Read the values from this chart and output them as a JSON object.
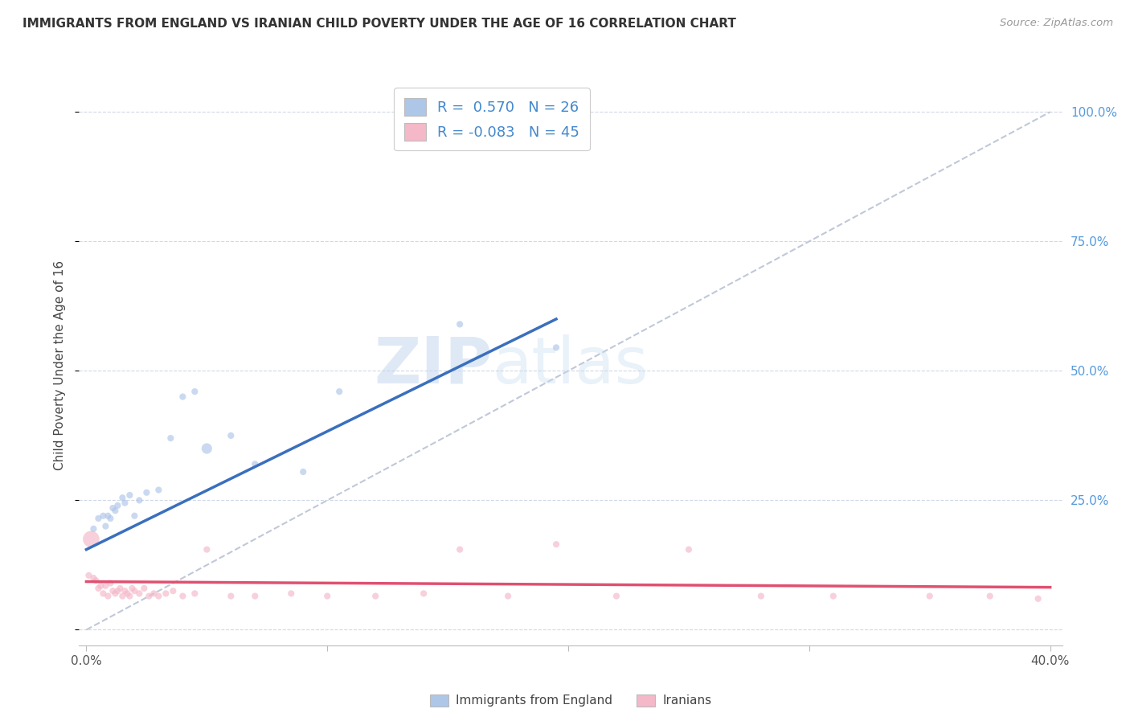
{
  "title": "IMMIGRANTS FROM ENGLAND VS IRANIAN CHILD POVERTY UNDER THE AGE OF 16 CORRELATION CHART",
  "source": "Source: ZipAtlas.com",
  "ylabel": "Child Poverty Under the Age of 16",
  "legend_label1": "Immigrants from England",
  "legend_label2": "Iranians",
  "r1": 0.57,
  "n1": 26,
  "r2": -0.083,
  "n2": 45,
  "xlim": [
    -0.003,
    0.405
  ],
  "ylim": [
    -0.03,
    1.05
  ],
  "ytick_positions": [
    0.0,
    0.25,
    0.5,
    0.75,
    1.0
  ],
  "ytick_labels": [
    "",
    "25.0%",
    "50.0%",
    "75.0%",
    "100.0%"
  ],
  "xtick_positions": [
    0.0,
    0.1,
    0.2,
    0.3,
    0.4
  ],
  "xtick_labels": [
    "0.0%",
    "",
    "",
    "",
    "40.0%"
  ],
  "color_blue": "#aec6e8",
  "color_pink": "#f4b8c8",
  "line_blue": "#3a6fbd",
  "line_pink": "#e05070",
  "watermark_zip": "ZIP",
  "watermark_atlas": "atlas",
  "scatter_blue_x": [
    0.003,
    0.005,
    0.007,
    0.008,
    0.009,
    0.01,
    0.011,
    0.012,
    0.013,
    0.015,
    0.016,
    0.018,
    0.02,
    0.022,
    0.025,
    0.03,
    0.035,
    0.04,
    0.045,
    0.05,
    0.06,
    0.07,
    0.09,
    0.105,
    0.155,
    0.195
  ],
  "scatter_blue_y": [
    0.195,
    0.215,
    0.22,
    0.2,
    0.22,
    0.215,
    0.235,
    0.23,
    0.24,
    0.255,
    0.245,
    0.26,
    0.22,
    0.25,
    0.265,
    0.27,
    0.37,
    0.45,
    0.46,
    0.35,
    0.375,
    0.32,
    0.305,
    0.46,
    0.59,
    0.545
  ],
  "scatter_blue_sizes": [
    35,
    35,
    35,
    35,
    35,
    35,
    35,
    35,
    35,
    35,
    35,
    35,
    35,
    35,
    35,
    35,
    35,
    35,
    35,
    90,
    35,
    35,
    35,
    35,
    35,
    35
  ],
  "scatter_pink_x": [
    0.001,
    0.003,
    0.004,
    0.005,
    0.006,
    0.007,
    0.008,
    0.009,
    0.01,
    0.011,
    0.012,
    0.013,
    0.014,
    0.015,
    0.016,
    0.017,
    0.018,
    0.019,
    0.02,
    0.022,
    0.024,
    0.026,
    0.028,
    0.03,
    0.033,
    0.036,
    0.04,
    0.045,
    0.05,
    0.06,
    0.07,
    0.085,
    0.1,
    0.12,
    0.14,
    0.155,
    0.175,
    0.195,
    0.22,
    0.25,
    0.28,
    0.31,
    0.35,
    0.375,
    0.395
  ],
  "scatter_pink_y": [
    0.105,
    0.1,
    0.095,
    0.08,
    0.085,
    0.07,
    0.085,
    0.065,
    0.09,
    0.075,
    0.07,
    0.075,
    0.08,
    0.065,
    0.075,
    0.07,
    0.065,
    0.08,
    0.075,
    0.07,
    0.08,
    0.065,
    0.07,
    0.065,
    0.07,
    0.075,
    0.065,
    0.07,
    0.155,
    0.065,
    0.065,
    0.07,
    0.065,
    0.065,
    0.07,
    0.155,
    0.065,
    0.165,
    0.065,
    0.155,
    0.065,
    0.065,
    0.065,
    0.065,
    0.06
  ],
  "scatter_pink_sizes": [
    35,
    35,
    35,
    35,
    35,
    35,
    35,
    35,
    35,
    35,
    35,
    35,
    35,
    35,
    35,
    35,
    35,
    35,
    35,
    35,
    35,
    35,
    35,
    35,
    35,
    35,
    35,
    35,
    35,
    35,
    35,
    35,
    35,
    35,
    35,
    35,
    35,
    35,
    35,
    35,
    35,
    35,
    35,
    35,
    35
  ],
  "pink_large_x": [
    0.002
  ],
  "pink_large_y": [
    0.175
  ],
  "pink_large_size": [
    220
  ],
  "blue_line_x": [
    0.0,
    0.195
  ],
  "blue_line_y": [
    0.155,
    0.6
  ],
  "pink_line_x": [
    0.0,
    0.4
  ],
  "pink_line_y": [
    0.093,
    0.082
  ],
  "diag_line_x": [
    0.0,
    0.4
  ],
  "diag_line_y": [
    0.0,
    1.0
  ]
}
